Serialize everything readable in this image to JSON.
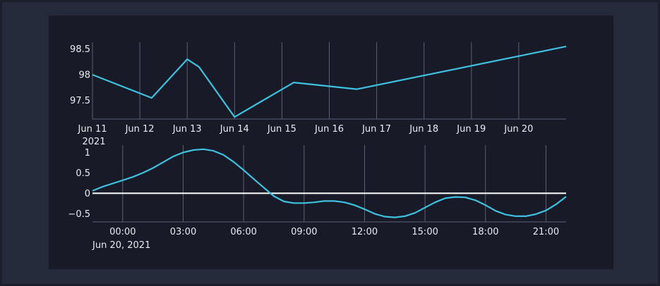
{
  "chart_data": [
    {
      "type": "line",
      "title": "",
      "xlabel": "",
      "ylabel": "",
      "x_year_label": "2021",
      "x_tick_labels": [
        "Jun 11",
        "Jun 12",
        "Jun 13",
        "Jun 14",
        "Jun 15",
        "Jun 16",
        "Jun 17",
        "Jun 18",
        "Jun 19",
        "Jun 20"
      ],
      "x_tick_dates": [
        "2021-06-11",
        "2021-06-12",
        "2021-06-13",
        "2021-06-14",
        "2021-06-15",
        "2021-06-16",
        "2021-06-17",
        "2021-06-18",
        "2021-06-19",
        "2021-06-20"
      ],
      "xlim": [
        "2021-06-11",
        "2021-06-21T00:00"
      ],
      "y_tick_labels": [
        "97.5",
        "98",
        "98.5"
      ],
      "y_ticks": [
        97.5,
        98,
        98.5
      ],
      "ylim": [
        97.14,
        98.63
      ],
      "grid": "vertical",
      "series": [
        {
          "x": [
            "2021-06-11T00:00",
            "2021-06-12T06:00",
            "2021-06-13T00:00",
            "2021-06-13T06:00",
            "2021-06-14T00:00",
            "2021-06-15T06:00",
            "2021-06-16T14:00",
            "2021-06-21T00:00"
          ],
          "values": [
            98.0,
            97.55,
            98.3,
            98.15,
            97.18,
            97.85,
            97.72,
            98.55
          ]
        }
      ],
      "color": "#3ec1e0"
    },
    {
      "type": "line",
      "title": "",
      "xlabel": "",
      "ylabel": "",
      "x_date_label": "Jun 20, 2021",
      "x_tick_labels": [
        "00:00",
        "03:00",
        "06:00",
        "09:00",
        "12:00",
        "15:00",
        "18:00",
        "21:00"
      ],
      "x_ticks": [
        0,
        3,
        6,
        9,
        12,
        15,
        18,
        21
      ],
      "xlim": [
        -1.5,
        22.0
      ],
      "y_tick_labels": [
        "−0.5",
        "0",
        "0.5",
        "1"
      ],
      "y_ticks": [
        -0.5,
        0,
        0.5,
        1
      ],
      "ylim": [
        -0.7,
        1.18
      ],
      "zero_line": true,
      "grid": "vertical",
      "series": [
        {
          "x": [
            -1.5,
            -1,
            -0.5,
            0,
            0.5,
            1,
            1.5,
            2,
            2.5,
            3,
            3.5,
            4,
            4.5,
            5,
            5.5,
            6,
            6.5,
            7,
            7.5,
            8,
            8.5,
            9,
            9.5,
            10,
            10.5,
            11,
            11.5,
            12,
            12.5,
            13,
            13.5,
            14,
            14.5,
            15,
            15.5,
            16,
            16.5,
            17,
            17.5,
            18,
            18.5,
            19,
            19.5,
            20,
            20.5,
            21,
            21.5,
            22
          ],
          "values": [
            0.06,
            0.16,
            0.24,
            0.32,
            0.4,
            0.5,
            0.62,
            0.76,
            0.9,
            1.0,
            1.06,
            1.08,
            1.04,
            0.94,
            0.77,
            0.57,
            0.35,
            0.14,
            -0.07,
            -0.2,
            -0.24,
            -0.24,
            -0.22,
            -0.19,
            -0.19,
            -0.22,
            -0.29,
            -0.39,
            -0.5,
            -0.57,
            -0.59,
            -0.56,
            -0.48,
            -0.35,
            -0.22,
            -0.12,
            -0.09,
            -0.1,
            -0.17,
            -0.29,
            -0.43,
            -0.52,
            -0.56,
            -0.56,
            -0.51,
            -0.42,
            -0.27,
            -0.08
          ]
        }
      ],
      "color": "#3ec1e0"
    }
  ]
}
